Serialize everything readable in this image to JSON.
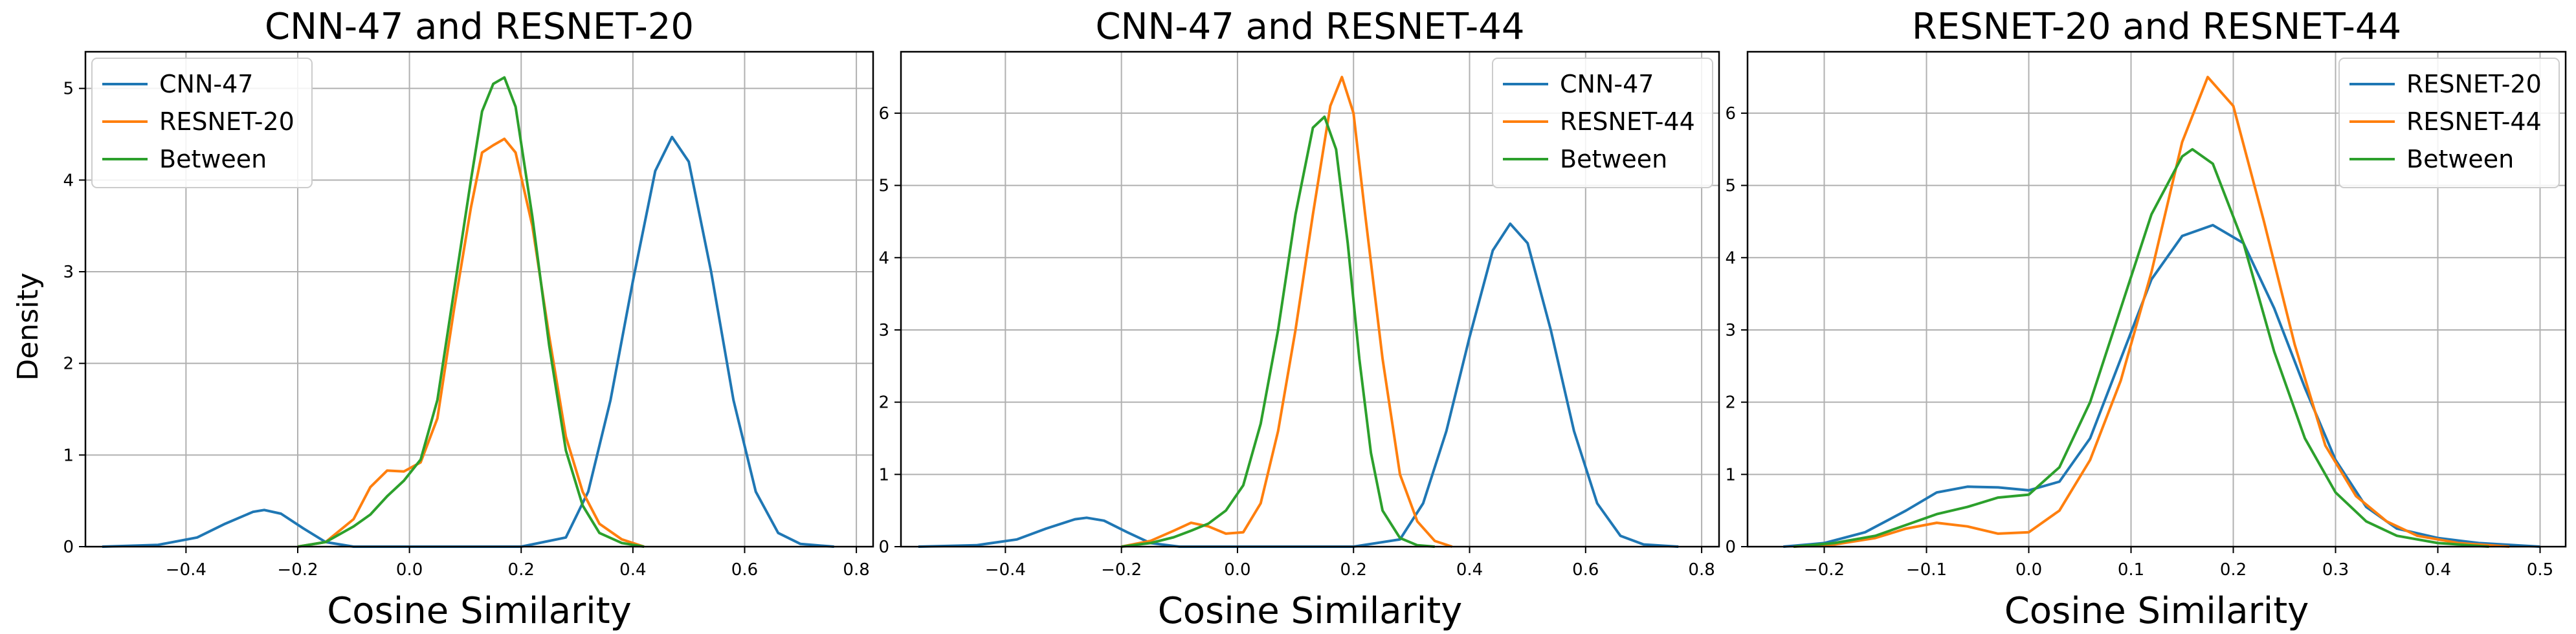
{
  "figure": {
    "ylabel": "Density"
  },
  "chart_data": [
    {
      "type": "line",
      "title": "CNN-47 and RESNET-20",
      "xlabel": "Cosine Similarity",
      "ylabel": "Density",
      "xlim": [
        -0.58,
        0.83
      ],
      "ylim": [
        0,
        5.4
      ],
      "xticks": [
        -0.4,
        -0.2,
        0.0,
        0.2,
        0.4,
        0.6,
        0.8
      ],
      "xtick_labels": [
        "−0.4",
        "−0.2",
        "0.0",
        "0.2",
        "0.4",
        "0.6",
        "0.8"
      ],
      "yticks": [
        0,
        1,
        2,
        3,
        4,
        5
      ],
      "ytick_labels": [
        "0",
        "1",
        "2",
        "3",
        "4",
        "5"
      ],
      "grid": true,
      "legend_position": "top-left",
      "series": [
        {
          "name": "CNN-47",
          "color": "#1f77b4",
          "points": [
            [
              -0.55,
              0.0
            ],
            [
              -0.45,
              0.02
            ],
            [
              -0.38,
              0.1
            ],
            [
              -0.33,
              0.25
            ],
            [
              -0.28,
              0.38
            ],
            [
              -0.26,
              0.4
            ],
            [
              -0.23,
              0.36
            ],
            [
              -0.19,
              0.2
            ],
            [
              -0.15,
              0.05
            ],
            [
              -0.1,
              0.0
            ],
            [
              0.2,
              0.0
            ],
            [
              0.28,
              0.1
            ],
            [
              0.32,
              0.6
            ],
            [
              0.36,
              1.6
            ],
            [
              0.4,
              2.9
            ],
            [
              0.44,
              4.1
            ],
            [
              0.47,
              4.47
            ],
            [
              0.5,
              4.2
            ],
            [
              0.54,
              3.0
            ],
            [
              0.58,
              1.6
            ],
            [
              0.62,
              0.6
            ],
            [
              0.66,
              0.15
            ],
            [
              0.7,
              0.03
            ],
            [
              0.76,
              0.0
            ]
          ]
        },
        {
          "name": "RESNET-20",
          "color": "#ff7f0e",
          "points": [
            [
              -0.2,
              0.0
            ],
            [
              -0.15,
              0.05
            ],
            [
              -0.1,
              0.3
            ],
            [
              -0.07,
              0.65
            ],
            [
              -0.04,
              0.83
            ],
            [
              -0.01,
              0.82
            ],
            [
              0.02,
              0.92
            ],
            [
              0.05,
              1.4
            ],
            [
              0.08,
              2.6
            ],
            [
              0.11,
              3.7
            ],
            [
              0.13,
              4.3
            ],
            [
              0.15,
              4.38
            ],
            [
              0.17,
              4.45
            ],
            [
              0.19,
              4.3
            ],
            [
              0.22,
              3.5
            ],
            [
              0.25,
              2.3
            ],
            [
              0.28,
              1.2
            ],
            [
              0.31,
              0.6
            ],
            [
              0.34,
              0.25
            ],
            [
              0.38,
              0.08
            ],
            [
              0.42,
              0.0
            ]
          ]
        },
        {
          "name": "Between",
          "color": "#2ca02c",
          "points": [
            [
              -0.2,
              0.0
            ],
            [
              -0.15,
              0.05
            ],
            [
              -0.1,
              0.22
            ],
            [
              -0.07,
              0.35
            ],
            [
              -0.04,
              0.55
            ],
            [
              -0.01,
              0.72
            ],
            [
              0.02,
              0.95
            ],
            [
              0.05,
              1.6
            ],
            [
              0.08,
              2.8
            ],
            [
              0.11,
              4.0
            ],
            [
              0.13,
              4.75
            ],
            [
              0.15,
              5.05
            ],
            [
              0.17,
              5.12
            ],
            [
              0.19,
              4.8
            ],
            [
              0.22,
              3.6
            ],
            [
              0.25,
              2.2
            ],
            [
              0.28,
              1.05
            ],
            [
              0.31,
              0.45
            ],
            [
              0.34,
              0.15
            ],
            [
              0.38,
              0.04
            ],
            [
              0.42,
              0.0
            ]
          ]
        }
      ]
    },
    {
      "type": "line",
      "title": "CNN-47 and RESNET-44",
      "xlabel": "Cosine Similarity",
      "ylabel": "",
      "xlim": [
        -0.58,
        0.83
      ],
      "ylim": [
        0,
        6.85
      ],
      "xticks": [
        -0.4,
        -0.2,
        0.0,
        0.2,
        0.4,
        0.6,
        0.8
      ],
      "xtick_labels": [
        "−0.4",
        "−0.2",
        "0.0",
        "0.2",
        "0.4",
        "0.6",
        "0.8"
      ],
      "yticks": [
        0,
        1,
        2,
        3,
        4,
        5,
        6
      ],
      "ytick_labels": [
        "0",
        "1",
        "2",
        "3",
        "4",
        "5",
        "6"
      ],
      "grid": true,
      "legend_position": "top-right",
      "series": [
        {
          "name": "CNN-47",
          "color": "#1f77b4",
          "points": [
            [
              -0.55,
              0.0
            ],
            [
              -0.45,
              0.02
            ],
            [
              -0.38,
              0.1
            ],
            [
              -0.33,
              0.25
            ],
            [
              -0.28,
              0.38
            ],
            [
              -0.26,
              0.4
            ],
            [
              -0.23,
              0.36
            ],
            [
              -0.19,
              0.2
            ],
            [
              -0.15,
              0.05
            ],
            [
              -0.1,
              0.0
            ],
            [
              0.2,
              0.0
            ],
            [
              0.28,
              0.1
            ],
            [
              0.32,
              0.6
            ],
            [
              0.36,
              1.6
            ],
            [
              0.4,
              2.9
            ],
            [
              0.44,
              4.1
            ],
            [
              0.47,
              4.47
            ],
            [
              0.5,
              4.2
            ],
            [
              0.54,
              3.0
            ],
            [
              0.58,
              1.6
            ],
            [
              0.62,
              0.6
            ],
            [
              0.66,
              0.15
            ],
            [
              0.7,
              0.03
            ],
            [
              0.76,
              0.0
            ]
          ]
        },
        {
          "name": "RESNET-44",
          "color": "#ff7f0e",
          "points": [
            [
              -0.2,
              0.0
            ],
            [
              -0.15,
              0.08
            ],
            [
              -0.11,
              0.22
            ],
            [
              -0.08,
              0.33
            ],
            [
              -0.05,
              0.28
            ],
            [
              -0.02,
              0.18
            ],
            [
              0.01,
              0.2
            ],
            [
              0.04,
              0.6
            ],
            [
              0.07,
              1.6
            ],
            [
              0.1,
              3.0
            ],
            [
              0.13,
              4.6
            ],
            [
              0.16,
              6.1
            ],
            [
              0.18,
              6.5
            ],
            [
              0.2,
              6.0
            ],
            [
              0.22,
              4.6
            ],
            [
              0.25,
              2.6
            ],
            [
              0.28,
              1.0
            ],
            [
              0.31,
              0.35
            ],
            [
              0.34,
              0.08
            ],
            [
              0.37,
              0.0
            ]
          ]
        },
        {
          "name": "Between",
          "color": "#2ca02c",
          "points": [
            [
              -0.2,
              0.0
            ],
            [
              -0.15,
              0.05
            ],
            [
              -0.11,
              0.13
            ],
            [
              -0.08,
              0.22
            ],
            [
              -0.05,
              0.32
            ],
            [
              -0.02,
              0.5
            ],
            [
              0.01,
              0.85
            ],
            [
              0.04,
              1.7
            ],
            [
              0.07,
              3.0
            ],
            [
              0.1,
              4.6
            ],
            [
              0.13,
              5.8
            ],
            [
              0.15,
              5.95
            ],
            [
              0.17,
              5.5
            ],
            [
              0.19,
              4.2
            ],
            [
              0.21,
              2.6
            ],
            [
              0.23,
              1.3
            ],
            [
              0.25,
              0.5
            ],
            [
              0.28,
              0.12
            ],
            [
              0.31,
              0.02
            ],
            [
              0.34,
              0.0
            ]
          ]
        }
      ]
    },
    {
      "type": "line",
      "title": "RESNET-20 and RESNET-44",
      "xlabel": "Cosine Similarity",
      "ylabel": "",
      "xlim": [
        -0.275,
        0.525
      ],
      "ylim": [
        0,
        6.85
      ],
      "xticks": [
        -0.2,
        -0.1,
        0.0,
        0.1,
        0.2,
        0.3,
        0.4,
        0.5
      ],
      "xtick_labels": [
        "−0.2",
        "−0.1",
        "0.0",
        "0.1",
        "0.2",
        "0.3",
        "0.4",
        "0.5"
      ],
      "yticks": [
        0,
        1,
        2,
        3,
        4,
        5,
        6
      ],
      "ytick_labels": [
        "0",
        "1",
        "2",
        "3",
        "4",
        "5",
        "6"
      ],
      "grid": true,
      "legend_position": "top-right",
      "series": [
        {
          "name": "RESNET-20",
          "color": "#1f77b4",
          "points": [
            [
              -0.24,
              0.0
            ],
            [
              -0.2,
              0.05
            ],
            [
              -0.16,
              0.2
            ],
            [
              -0.12,
              0.5
            ],
            [
              -0.09,
              0.75
            ],
            [
              -0.06,
              0.83
            ],
            [
              -0.03,
              0.82
            ],
            [
              0.0,
              0.78
            ],
            [
              0.03,
              0.9
            ],
            [
              0.06,
              1.5
            ],
            [
              0.09,
              2.6
            ],
            [
              0.12,
              3.7
            ],
            [
              0.15,
              4.3
            ],
            [
              0.18,
              4.45
            ],
            [
              0.21,
              4.2
            ],
            [
              0.24,
              3.3
            ],
            [
              0.27,
              2.2
            ],
            [
              0.3,
              1.2
            ],
            [
              0.33,
              0.55
            ],
            [
              0.36,
              0.25
            ],
            [
              0.4,
              0.12
            ],
            [
              0.44,
              0.05
            ],
            [
              0.5,
              0.0
            ]
          ]
        },
        {
          "name": "RESNET-44",
          "color": "#ff7f0e",
          "points": [
            [
              -0.23,
              0.0
            ],
            [
              -0.19,
              0.03
            ],
            [
              -0.15,
              0.12
            ],
            [
              -0.12,
              0.25
            ],
            [
              -0.09,
              0.33
            ],
            [
              -0.06,
              0.28
            ],
            [
              -0.03,
              0.18
            ],
            [
              0.0,
              0.2
            ],
            [
              0.03,
              0.5
            ],
            [
              0.06,
              1.2
            ],
            [
              0.09,
              2.3
            ],
            [
              0.12,
              3.8
            ],
            [
              0.15,
              5.6
            ],
            [
              0.175,
              6.5
            ],
            [
              0.2,
              6.1
            ],
            [
              0.23,
              4.5
            ],
            [
              0.26,
              2.8
            ],
            [
              0.29,
              1.4
            ],
            [
              0.32,
              0.7
            ],
            [
              0.35,
              0.35
            ],
            [
              0.38,
              0.15
            ],
            [
              0.42,
              0.05
            ],
            [
              0.47,
              0.0
            ]
          ]
        },
        {
          "name": "Between",
          "color": "#2ca02c",
          "points": [
            [
              -0.23,
              0.0
            ],
            [
              -0.19,
              0.05
            ],
            [
              -0.15,
              0.15
            ],
            [
              -0.12,
              0.3
            ],
            [
              -0.09,
              0.45
            ],
            [
              -0.06,
              0.55
            ],
            [
              -0.03,
              0.68
            ],
            [
              0.0,
              0.72
            ],
            [
              0.03,
              1.1
            ],
            [
              0.06,
              2.0
            ],
            [
              0.09,
              3.3
            ],
            [
              0.12,
              4.6
            ],
            [
              0.15,
              5.4
            ],
            [
              0.16,
              5.5
            ],
            [
              0.18,
              5.3
            ],
            [
              0.21,
              4.2
            ],
            [
              0.24,
              2.7
            ],
            [
              0.27,
              1.5
            ],
            [
              0.3,
              0.75
            ],
            [
              0.33,
              0.35
            ],
            [
              0.36,
              0.15
            ],
            [
              0.4,
              0.05
            ],
            [
              0.45,
              0.0
            ]
          ]
        }
      ]
    }
  ]
}
